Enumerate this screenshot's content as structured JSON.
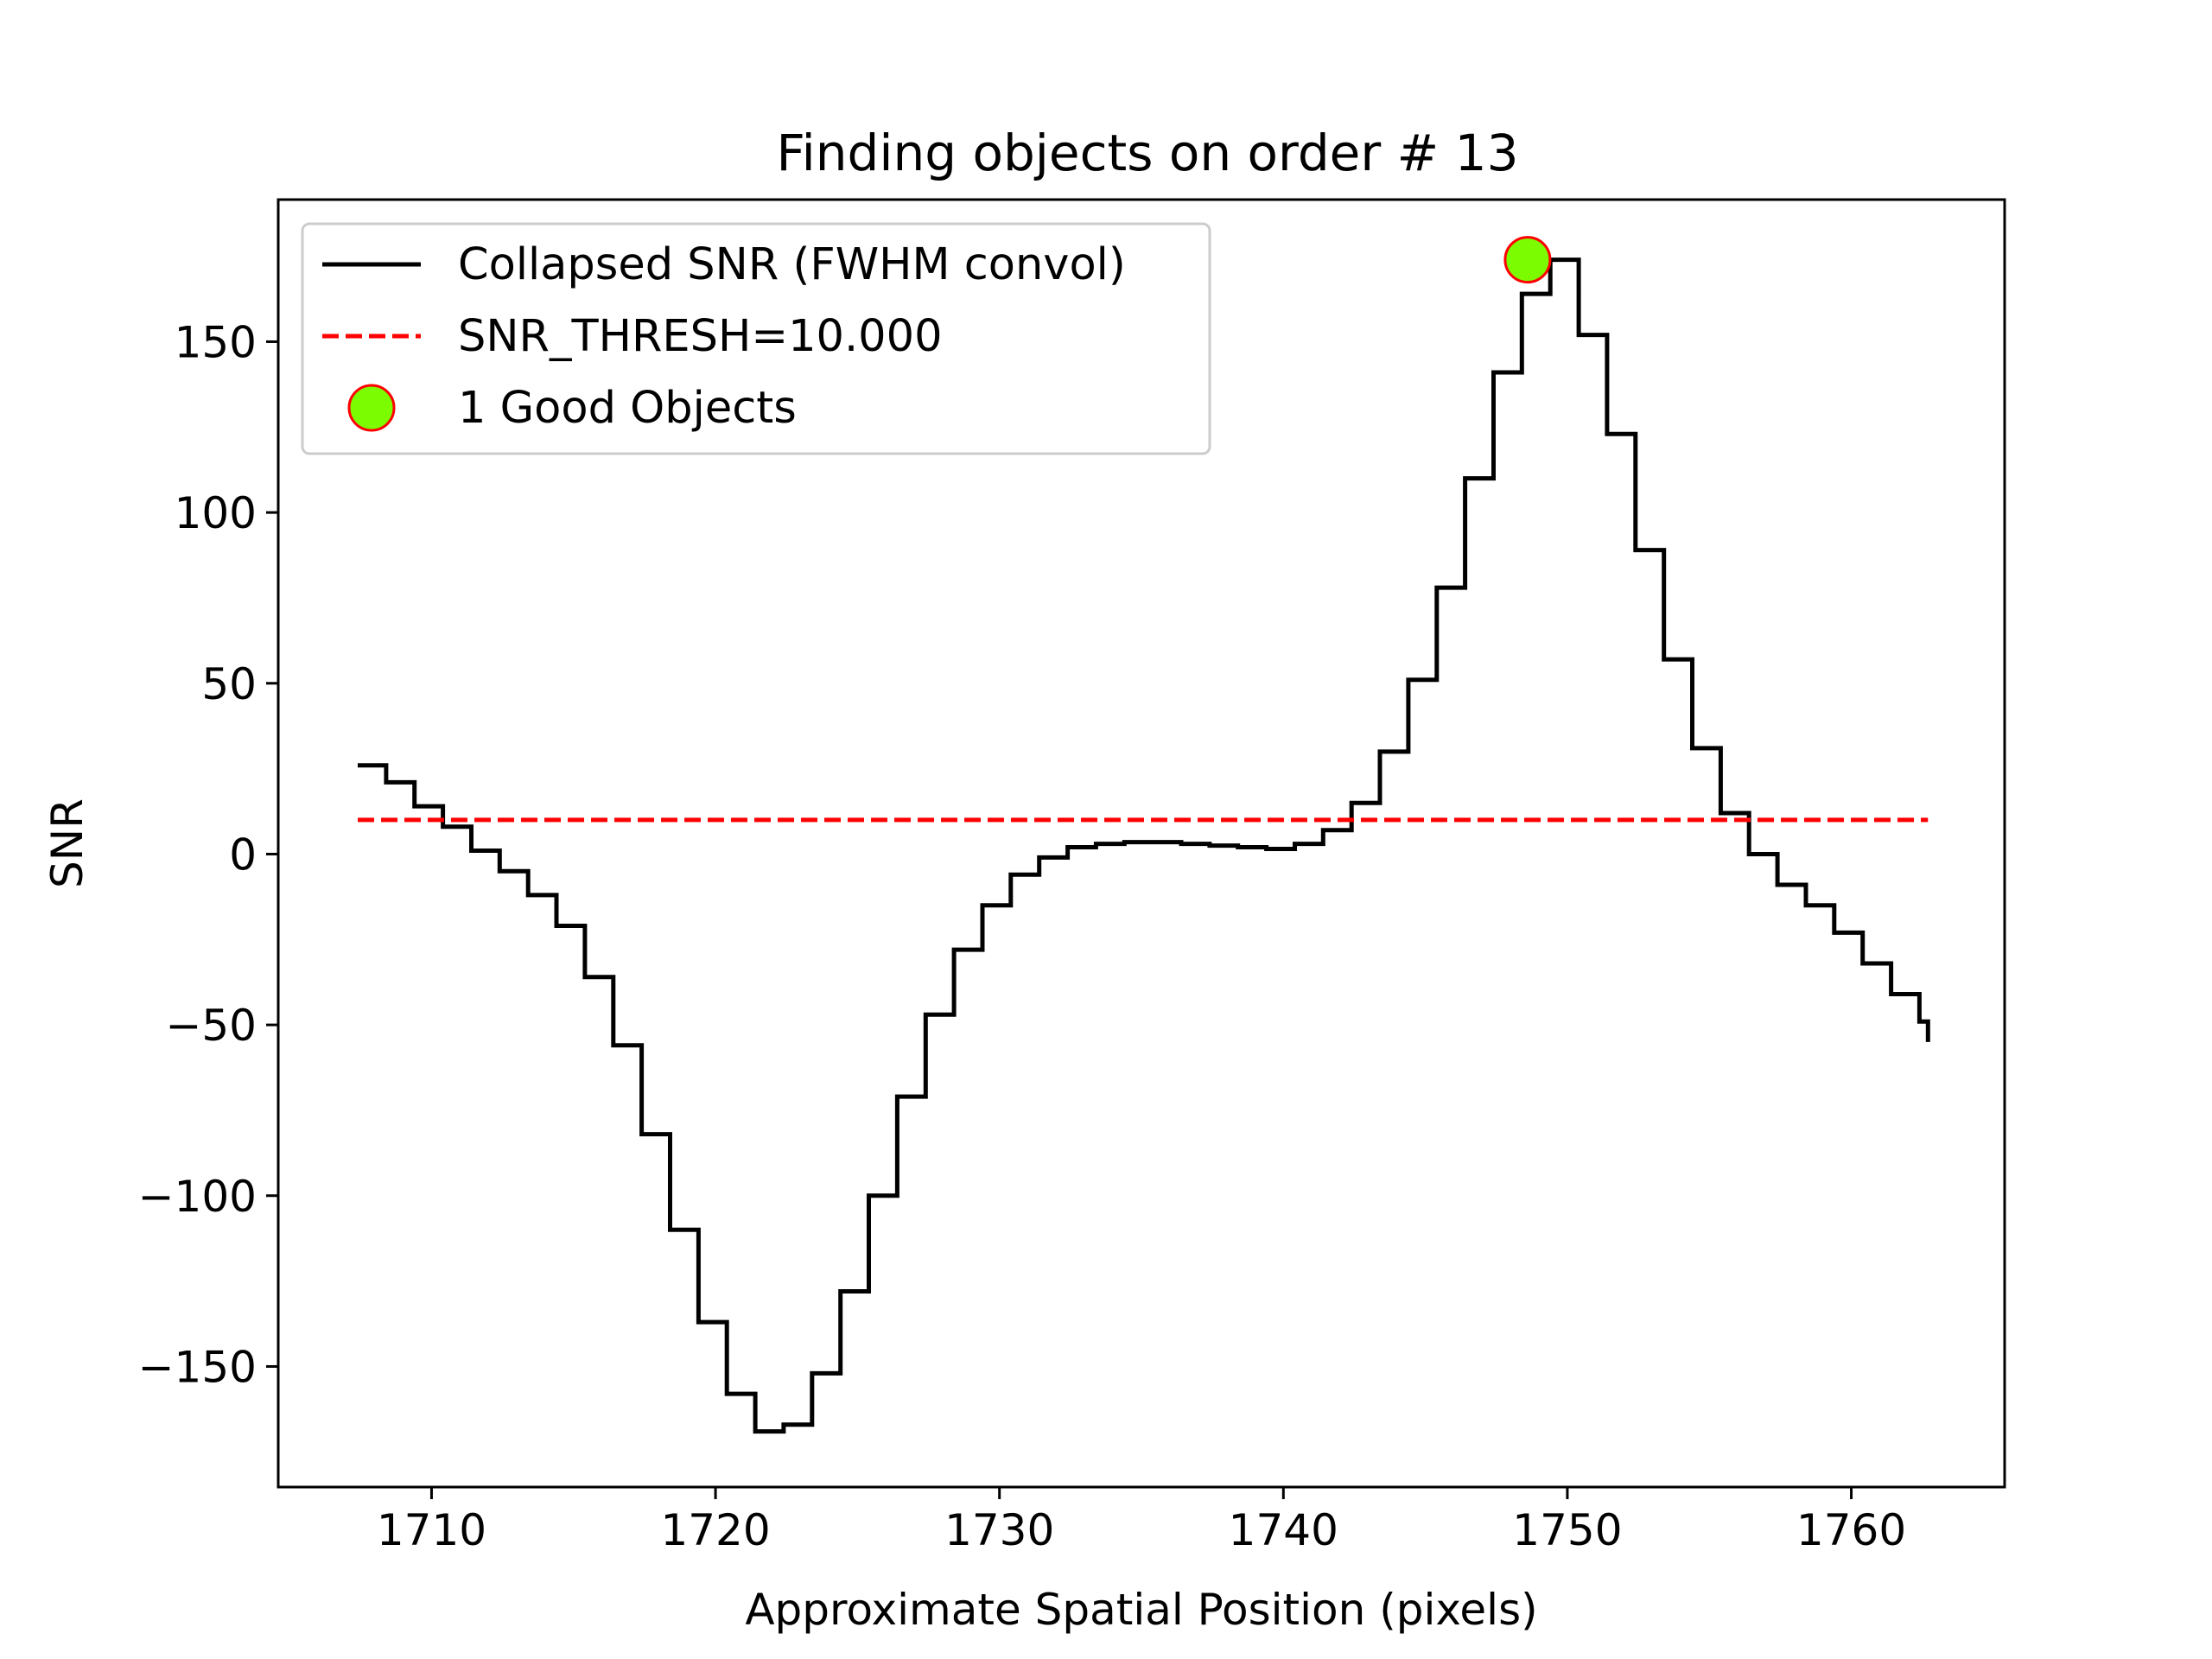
{
  "chart_data": {
    "type": "line",
    "title": "Finding objects on order # 13",
    "xlabel": "Approximate Spatial Position (pixels)",
    "ylabel": "SNR",
    "xlim": [
      1704.6,
      1765.4
    ],
    "ylim": [
      -185.3,
      191.6
    ],
    "xticks": [
      1710,
      1720,
      1730,
      1740,
      1750,
      1760
    ],
    "xtick_labels": [
      "1710",
      "1720",
      "1730",
      "1740",
      "1750",
      "1760"
    ],
    "yticks": [
      -150,
      -100,
      -50,
      0,
      50,
      100,
      150
    ],
    "ytick_labels": [
      "−150",
      "−100",
      "−50",
      "0",
      "50",
      "100",
      "150"
    ],
    "legend_position": "upper-left",
    "series": [
      {
        "name": "Collapsed SNR (FWHM convol)",
        "style": "step",
        "color": "#000000",
        "x": [
          1707.4,
          1708.4,
          1709.4,
          1710.4,
          1711.4,
          1712.4,
          1713.4,
          1714.4,
          1715.4,
          1716.4,
          1717.4,
          1718.4,
          1719.4,
          1720.4,
          1721.4,
          1722.4,
          1723.4,
          1724.4,
          1725.4,
          1726.4,
          1727.4,
          1728.4,
          1729.4,
          1730.4,
          1731.4,
          1732.4,
          1733.4,
          1734.4,
          1735.4,
          1736.4,
          1737.4,
          1738.4,
          1739.4,
          1740.4,
          1741.4,
          1742.4,
          1743.4,
          1744.4,
          1745.4,
          1746.4,
          1747.4,
          1748.4,
          1749.4,
          1750.4,
          1751.4,
          1752.4,
          1753.4,
          1754.4,
          1755.4,
          1756.4,
          1757.4,
          1758.4,
          1759.4,
          1760.4,
          1761.4,
          1762.4,
          1762.7
        ],
        "values": [
          26,
          21,
          14,
          8,
          1,
          -5,
          -12,
          -21,
          -36,
          -56,
          -82,
          -110,
          -137,
          -158,
          -169,
          -167,
          -152,
          -128,
          -100,
          -71,
          -47,
          -28,
          -15,
          -6,
          -1,
          2,
          3,
          3.5,
          3.5,
          3,
          2.5,
          2,
          1.5,
          3,
          7,
          15,
          30,
          51,
          78,
          110,
          141,
          164,
          174,
          152,
          123,
          89,
          57,
          31,
          12,
          0,
          -9,
          -15,
          -23,
          -32,
          -41,
          -49,
          -55
        ]
      },
      {
        "name": "SNR_THRESH=10.000",
        "style": "dashed",
        "color": "#ff0000",
        "x": [
          1707.4,
          1762.7
        ],
        "values": [
          10,
          10
        ]
      },
      {
        "name": "1 Good Objects",
        "style": "marker",
        "color": "#7cfc00",
        "edge_color": "#ff0000",
        "x": [
          1748.6
        ],
        "values": [
          174
        ]
      }
    ]
  }
}
